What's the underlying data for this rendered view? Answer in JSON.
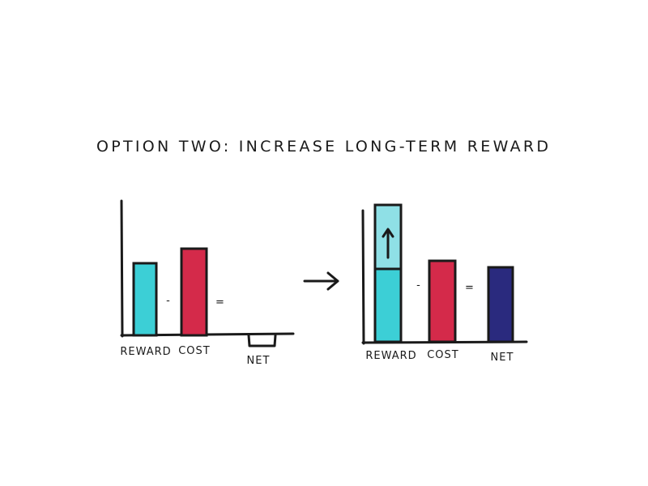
{
  "title": "OPTION TWO: INCREASE LONG-TERM REWARD",
  "before": {
    "labels": {
      "reward": "REWARD",
      "cost": "COST",
      "net": "NET"
    },
    "operators": {
      "minus": "-",
      "equals": "="
    }
  },
  "after": {
    "labels": {
      "reward": "REWARD",
      "cost": "COST",
      "net": "NET"
    },
    "operators": {
      "minus": "-",
      "equals": "="
    }
  },
  "colors": {
    "reward": "#3ccfd6",
    "reward_increase": "#8fe0e6",
    "cost": "#d42a4a",
    "net": "#2a2a7e",
    "ink": "#1a1a1a"
  }
}
